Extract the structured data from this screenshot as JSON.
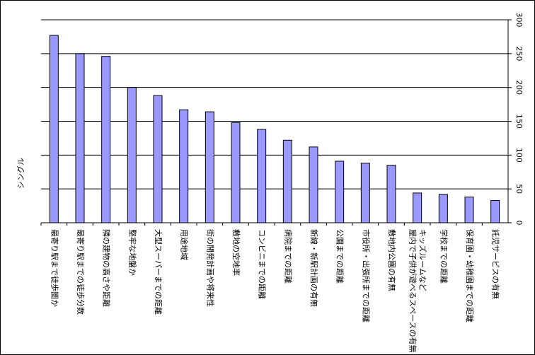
{
  "chart_data": {
    "type": "bar",
    "y_label": "シングル",
    "categories": [
      "最寄り駅まで徒歩圏か",
      "最寄り駅までの徒歩分数",
      "隣の建物の高さや距離",
      "堅牢な地盤か",
      "大型スーパーまでの距離",
      "用途地域",
      "街の開発計画や将来性",
      "敷地の空地率",
      "コンビニまでの距離",
      "病院までの距離",
      "新線・新駅計画の有無",
      "公園までの距離",
      "市役所・出張所までの距離",
      "敷地内公園の有無",
      "キッズルームなど\n屋内で子供が遊べるスペースの有無",
      "学校までの距離",
      "保育園・幼稚園までの距離",
      "託児サービスの有無"
    ],
    "values": [
      277,
      250,
      246,
      200,
      188,
      167,
      164,
      148,
      138,
      122,
      112,
      91,
      88,
      85,
      44,
      42,
      38,
      33
    ],
    "color": "#9999ff",
    "ylim": [
      0,
      300
    ],
    "yticks": [
      0,
      50,
      100,
      150,
      200,
      250,
      300
    ],
    "grid": true
  }
}
